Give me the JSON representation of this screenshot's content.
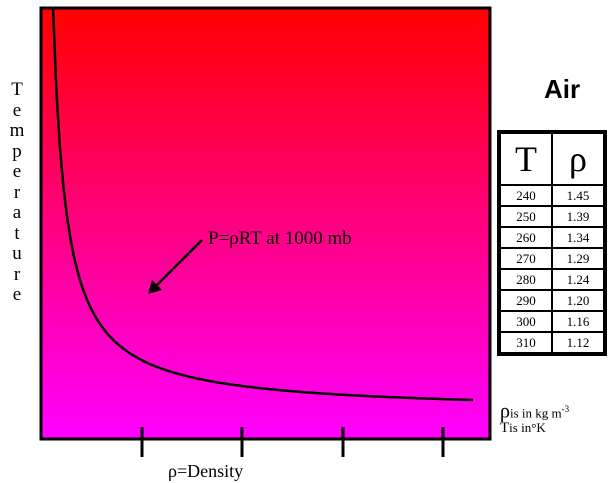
{
  "chart_data": {
    "type": "line",
    "title": "",
    "xlabel": "ρ=Density",
    "ylabel": "Temperature",
    "annotation": "P=ρRT at 1000 mb",
    "series": [
      {
        "values": []
      }
    ],
    "grid": false,
    "background": "gradient red (top) to magenta (bottom)",
    "colors": {
      "top": "#ff0000",
      "bottom": "#ff00ff",
      "curve": "#000000"
    }
  },
  "table": {
    "title": "Air",
    "header_T": "T",
    "header_rho": "ρ",
    "rows": [
      {
        "T": "240",
        "rho": "1.45"
      },
      {
        "T": "250",
        "rho": "1.39"
      },
      {
        "T": "260",
        "rho": "1.34"
      },
      {
        "T": "270",
        "rho": "1.29"
      },
      {
        "T": "280",
        "rho": "1.24"
      },
      {
        "T": "290",
        "rho": "1.20"
      },
      {
        "T": "300",
        "rho": "1.16"
      },
      {
        "T": "310",
        "rho": "1.12"
      }
    ]
  },
  "notes": {
    "rho_symbol": "ρ",
    "rho_text": "is in kg m",
    "rho_exp": "-3",
    "t_symbol": "T",
    "t_text": "is in",
    "t_unit": "°K"
  }
}
